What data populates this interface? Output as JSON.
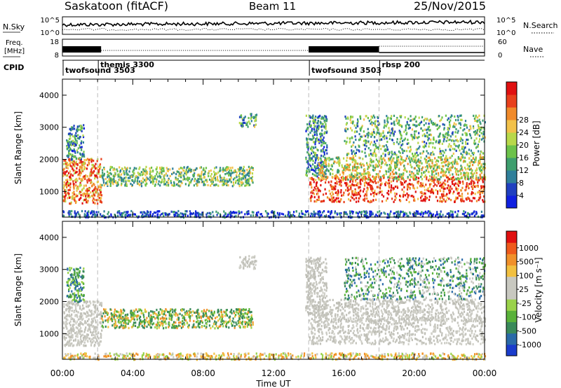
{
  "header": {
    "station": "Saskatoon (fitACF)",
    "beam": "Beam 11",
    "date": "25/Nov/2015"
  },
  "top_panels": {
    "nsky": {
      "label": "N.Sky",
      "left_ticks": [
        "10^5",
        "10^0"
      ],
      "right_ticks": [
        "10^5",
        "10^0"
      ],
      "right_label": "N.Search",
      "level_fraction_start": 0.55,
      "level_fraction_end": 0.7
    },
    "freq": {
      "label_line1": "Freq.",
      "label_line2": "[MHz]",
      "left_ticks": [
        "18",
        "8"
      ],
      "right_ticks": [
        "60",
        "0"
      ],
      "right_label": "Nave"
    },
    "cpid": {
      "label": "CPID",
      "segments": [
        {
          "name": "twofsound 3503",
          "start_hour": 0.0,
          "label_row": "lower"
        },
        {
          "name": "themis 3300",
          "start_hour": 2.0,
          "label_row": "upper"
        },
        {
          "name": "twofsound 3503",
          "start_hour": 14.0,
          "label_row": "lower"
        },
        {
          "name": "rbsp 200",
          "start_hour": 18.0,
          "label_row": "upper"
        }
      ]
    }
  },
  "chart_data": [
    {
      "type": "heatmap",
      "name": "power",
      "xlabel": "Time UT",
      "ylabel": "Slant Range [km]",
      "xlim": [
        0,
        24
      ],
      "ylim": [
        200,
        4500
      ],
      "x_ticks": [
        "00:00",
        "04:00",
        "08:00",
        "12:00",
        "16:00",
        "20:00",
        "00:00"
      ],
      "y_ticks": [
        1000,
        2000,
        3000,
        4000
      ],
      "colorbar": {
        "label": "Power [dB]",
        "ticks": [
          4,
          8,
          12,
          16,
          20,
          24,
          28
        ],
        "colors": [
          "#1020e0",
          "#2040c0",
          "#2f7f9a",
          "#3e9e6e",
          "#6cc24a",
          "#b8d84a",
          "#f2c14a",
          "#f08a2a",
          "#e8401c",
          "#e01010"
        ]
      },
      "scatter_regions": [
        {
          "t0": 0.0,
          "t1": 2.2,
          "r0": 650,
          "r1": 2050,
          "level": 0.75
        },
        {
          "t0": 0.2,
          "t1": 1.2,
          "r0": 2000,
          "r1": 3100,
          "level": 0.3
        },
        {
          "t0": 2.2,
          "t1": 10.8,
          "r0": 1200,
          "r1": 1800,
          "level": 0.45
        },
        {
          "t0": 10.0,
          "t1": 11.0,
          "r0": 3050,
          "r1": 3450,
          "level": 0.4
        },
        {
          "t0": 13.8,
          "t1": 15.0,
          "r0": 1500,
          "r1": 3400,
          "level": 0.3
        },
        {
          "t0": 14.0,
          "t1": 24.0,
          "r0": 700,
          "r1": 1500,
          "level": 0.88
        },
        {
          "t0": 14.5,
          "t1": 24.0,
          "r0": 1400,
          "r1": 2100,
          "level": 0.55
        },
        {
          "t0": 16.0,
          "t1": 24.0,
          "r0": 2100,
          "r1": 3400,
          "level": 0.4
        },
        {
          "t0": 0.0,
          "t1": 24.0,
          "r0": 220,
          "r1": 420,
          "level": 0.15
        }
      ],
      "vertical_markers": [
        2.0,
        14.0,
        18.0
      ]
    },
    {
      "type": "heatmap",
      "name": "velocity",
      "xlabel": "Time UT",
      "ylabel": "Slant Range [km]",
      "xlim": [
        0,
        24
      ],
      "ylim": [
        200,
        4500
      ],
      "x_ticks": [
        "00:00",
        "04:00",
        "08:00",
        "12:00",
        "16:00",
        "20:00",
        "00:00"
      ],
      "y_ticks": [
        1000,
        2000,
        3000,
        4000
      ],
      "colorbar": {
        "label": "Velocity [m s⁻¹]",
        "ticks": [
          "1000",
          "500",
          "100",
          "25",
          "-25",
          "-100",
          "-500",
          "-1000"
        ],
        "colors": [
          "#1a3ccc",
          "#2a6aa8",
          "#3a8a5a",
          "#5ab23a",
          "#9ad24a",
          "#c8c8c0",
          "#c8c8c0",
          "#f2c040",
          "#f0902a",
          "#ee5a1c",
          "#e01010"
        ]
      },
      "scatter_regions": [
        {
          "t0": 0.0,
          "t1": 2.2,
          "r0": 650,
          "r1": 2050,
          "palette": "gray"
        },
        {
          "t0": 0.2,
          "t1": 1.2,
          "r0": 2000,
          "r1": 3100,
          "palette": "green"
        },
        {
          "t0": 2.2,
          "t1": 10.8,
          "r0": 1200,
          "r1": 1800,
          "palette": "green-orange"
        },
        {
          "t0": 10.0,
          "t1": 11.0,
          "r0": 3050,
          "r1": 3450,
          "palette": "gray"
        },
        {
          "t0": 13.8,
          "t1": 15.0,
          "r0": 1500,
          "r1": 3400,
          "palette": "gray"
        },
        {
          "t0": 14.0,
          "t1": 24.0,
          "r0": 700,
          "r1": 1500,
          "palette": "gray"
        },
        {
          "t0": 14.5,
          "t1": 24.0,
          "r0": 1400,
          "r1": 2100,
          "palette": "gray"
        },
        {
          "t0": 16.0,
          "t1": 24.0,
          "r0": 2100,
          "r1": 3400,
          "palette": "green-blue"
        },
        {
          "t0": 0.0,
          "t1": 24.0,
          "r0": 220,
          "r1": 420,
          "palette": "yellow"
        }
      ],
      "vertical_markers": [
        2.0,
        14.0,
        18.0
      ]
    }
  ]
}
